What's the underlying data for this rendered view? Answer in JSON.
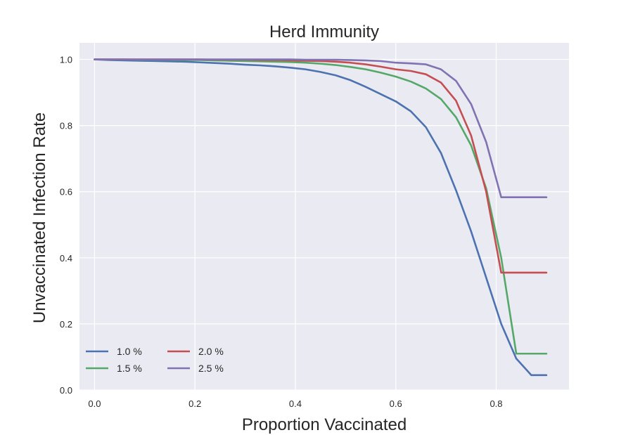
{
  "chart_data": {
    "type": "line",
    "title": "Herd Immunity",
    "xlabel": "Proportion Vaccinated",
    "ylabel": "Unvaccinated Infection Rate",
    "xlim": [
      -0.03,
      0.945
    ],
    "ylim": [
      0.0,
      1.05
    ],
    "xticks": [
      "0.0",
      "0.2",
      "0.4",
      "0.6",
      "0.8"
    ],
    "yticks": [
      "0.0",
      "0.2",
      "0.4",
      "0.6",
      "0.8",
      "1.0"
    ],
    "grid": true,
    "legend_position": "lower-left",
    "legend_columns": 2,
    "background_color": "#EAEAF2",
    "x": [
      0.0,
      0.03,
      0.06,
      0.09,
      0.12,
      0.15,
      0.18,
      0.21,
      0.24,
      0.27,
      0.3,
      0.33,
      0.36,
      0.39,
      0.42,
      0.45,
      0.48,
      0.51,
      0.54,
      0.57,
      0.6,
      0.63,
      0.66,
      0.69,
      0.72,
      0.75,
      0.78,
      0.81,
      0.84,
      0.87,
      0.9
    ],
    "series": [
      {
        "name": "1.0 %",
        "color": "#4C72B0",
        "values": [
          1.0,
          0.998,
          0.997,
          0.996,
          0.995,
          0.994,
          0.993,
          0.991,
          0.989,
          0.987,
          0.984,
          0.982,
          0.979,
          0.975,
          0.97,
          0.962,
          0.952,
          0.937,
          0.917,
          0.895,
          0.873,
          0.843,
          0.795,
          0.717,
          0.604,
          0.48,
          0.34,
          0.2,
          0.095,
          0.045,
          0.045
        ]
      },
      {
        "name": "1.5 %",
        "color": "#55A868",
        "values": [
          1.0,
          1.0,
          1.0,
          0.999,
          0.999,
          0.999,
          0.998,
          0.998,
          0.997,
          0.996,
          0.995,
          0.994,
          0.993,
          0.992,
          0.99,
          0.987,
          0.983,
          0.977,
          0.97,
          0.96,
          0.948,
          0.933,
          0.912,
          0.88,
          0.825,
          0.74,
          0.61,
          0.4,
          0.11,
          0.11,
          0.11
        ]
      },
      {
        "name": "2.0 %",
        "color": "#C44E52",
        "values": [
          1.0,
          1.0,
          1.0,
          1.0,
          1.0,
          1.0,
          1.0,
          1.0,
          0.999,
          0.999,
          0.999,
          0.998,
          0.998,
          0.997,
          0.996,
          0.995,
          0.993,
          0.99,
          0.985,
          0.978,
          0.97,
          0.965,
          0.955,
          0.93,
          0.875,
          0.77,
          0.6,
          0.355,
          0.355,
          0.355,
          0.355
        ]
      },
      {
        "name": "2.5 %",
        "color": "#8172B2",
        "values": [
          1.0,
          1.0,
          1.0,
          1.0,
          1.0,
          1.0,
          1.0,
          1.0,
          1.0,
          1.0,
          1.0,
          1.0,
          1.0,
          1.0,
          0.999,
          0.999,
          0.999,
          0.998,
          0.997,
          0.995,
          0.99,
          0.988,
          0.985,
          0.97,
          0.935,
          0.865,
          0.75,
          0.583,
          0.583,
          0.583,
          0.583
        ]
      }
    ]
  }
}
